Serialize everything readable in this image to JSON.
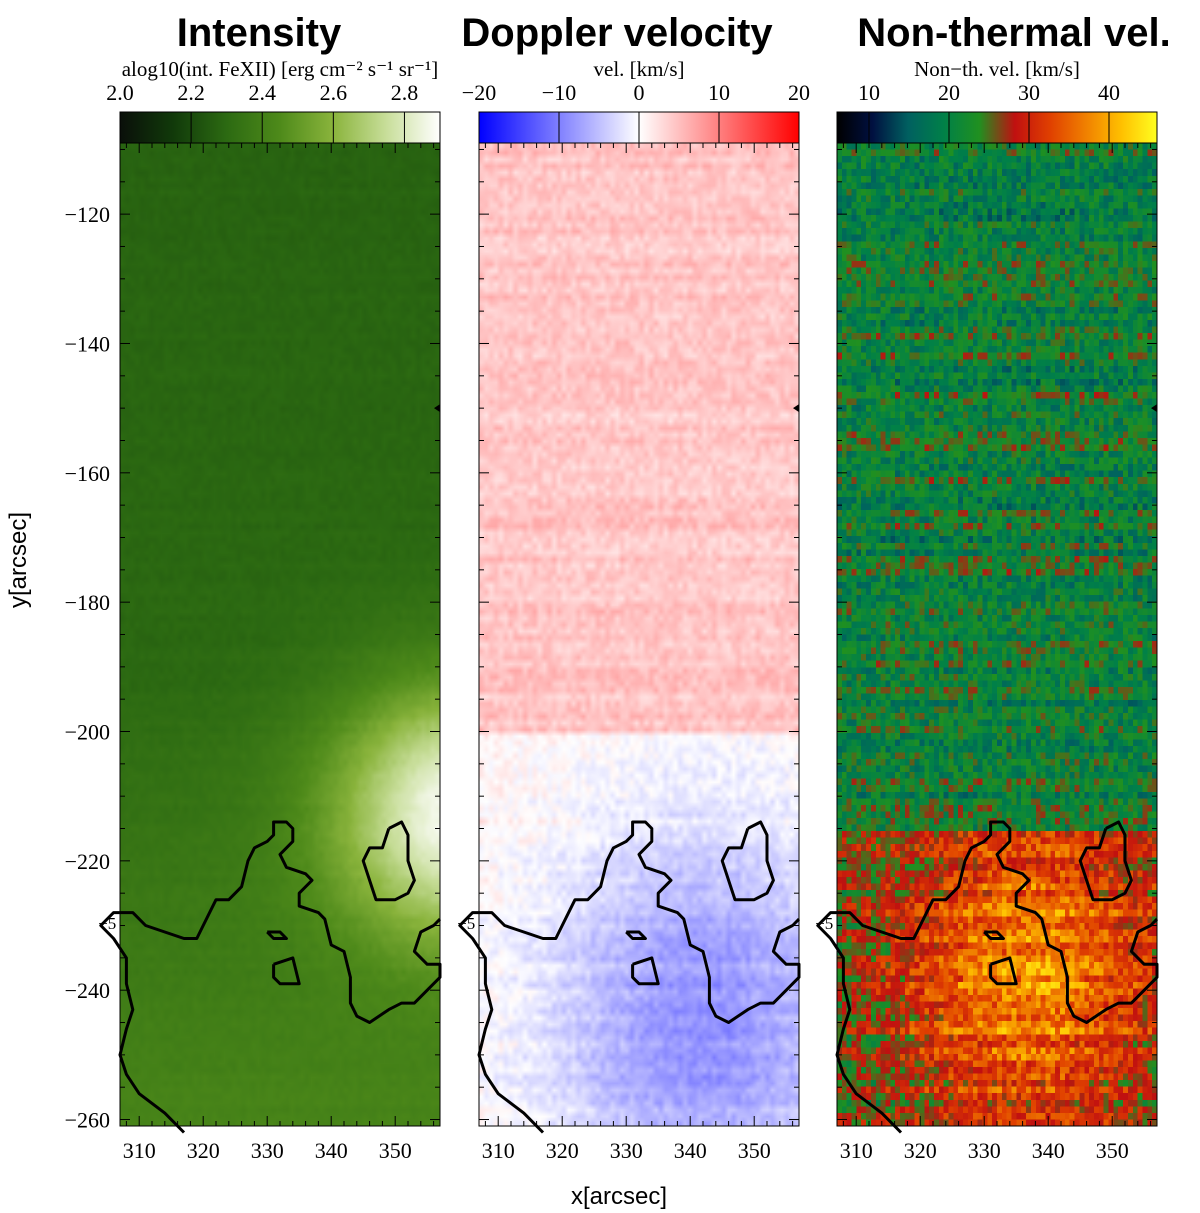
{
  "chart_data": {
    "type": "heatmap",
    "xlabel": "x[arcsec]",
    "ylabel": "y[arcsec]",
    "xlim": [
      307,
      357
    ],
    "ylim": [
      -261,
      -109
    ],
    "xticks": [
      310,
      320,
      330,
      340,
      350
    ],
    "yticks": [
      -120,
      -140,
      -160,
      -180,
      -200,
      -220,
      -240,
      -260
    ],
    "contour_label": "−5",
    "contours": [
      {
        "name": "main-region",
        "points": [
          [
            317,
            -262
          ],
          [
            314,
            -259
          ],
          [
            310,
            -256
          ],
          [
            308,
            -253
          ],
          [
            307,
            -250
          ],
          [
            308,
            -246
          ],
          [
            309,
            -243
          ],
          [
            308,
            -239
          ],
          [
            308,
            -235
          ],
          [
            306,
            -232
          ],
          [
            304,
            -230
          ],
          [
            306,
            -228
          ],
          [
            309,
            -228
          ],
          [
            311,
            -230
          ],
          [
            314,
            -231
          ],
          [
            317,
            -232
          ],
          [
            319,
            -232
          ],
          [
            320,
            -230
          ],
          [
            322,
            -226
          ],
          [
            324,
            -226
          ],
          [
            326,
            -224
          ],
          [
            327,
            -220
          ],
          [
            328,
            -218
          ],
          [
            330,
            -217
          ],
          [
            331,
            -216
          ],
          [
            331,
            -214
          ],
          [
            333,
            -214
          ],
          [
            334,
            -215
          ],
          [
            334,
            -217
          ],
          [
            332,
            -219
          ],
          [
            333,
            -221
          ],
          [
            336,
            -222
          ],
          [
            337,
            -223
          ],
          [
            335,
            -225
          ],
          [
            335,
            -227
          ],
          [
            338,
            -228
          ],
          [
            339,
            -229
          ],
          [
            340,
            -233
          ],
          [
            342,
            -234
          ],
          [
            343,
            -238
          ],
          [
            343,
            -240
          ],
          [
            343,
            -242
          ],
          [
            344,
            -244
          ],
          [
            346,
            -245
          ],
          [
            349,
            -243
          ],
          [
            351,
            -242
          ],
          [
            353,
            -242
          ],
          [
            355,
            -240
          ],
          [
            357,
            -238
          ],
          [
            357,
            -236
          ],
          [
            355,
            -236
          ],
          [
            353,
            -234
          ],
          [
            354,
            -231
          ],
          [
            356,
            -230
          ],
          [
            357,
            -229
          ]
        ]
      },
      {
        "name": "upper-right-loop",
        "points": [
          [
            349,
            -215
          ],
          [
            351,
            -214
          ],
          [
            352,
            -216
          ],
          [
            352,
            -218
          ],
          [
            352,
            -220
          ],
          [
            353,
            -223
          ],
          [
            352,
            -225
          ],
          [
            350,
            -226
          ],
          [
            347,
            -226
          ],
          [
            346,
            -223
          ],
          [
            345,
            -220
          ],
          [
            346,
            -218
          ],
          [
            348,
            -218
          ],
          [
            349,
            -215
          ]
        ]
      },
      {
        "name": "small-loop",
        "points": [
          [
            331,
            -236
          ],
          [
            334,
            -235
          ],
          [
            335,
            -239
          ],
          [
            332,
            -239
          ],
          [
            331,
            -238
          ],
          [
            331,
            -236
          ]
        ]
      },
      {
        "name": "tiny-blob",
        "points": [
          [
            330,
            -231
          ],
          [
            332,
            -231
          ],
          [
            333,
            -232
          ],
          [
            331,
            -232
          ],
          [
            330,
            -231
          ]
        ]
      }
    ],
    "panels": [
      {
        "title": "Intensity",
        "colorbar_label": "alog10(int. FeXII) [erg cm⁻² s⁻¹ sr⁻¹]",
        "colorbar_ticks": [
          "2.0",
          "2.2",
          "2.4",
          "2.6",
          "2.8"
        ],
        "colorbar_tick_values": [
          2.0,
          2.2,
          2.4,
          2.6,
          2.8
        ],
        "range": [
          2.0,
          2.9
        ],
        "colormap": [
          "#0a0f0a",
          "#113a0a",
          "#2c6a12",
          "#4e8a1a",
          "#8ab43c",
          "#c8de9a",
          "#ffffff"
        ]
      },
      {
        "title": "Doppler velocity",
        "colorbar_label": "vel. [km/s]",
        "colorbar_ticks": [
          "−20",
          "−10",
          "0",
          "10",
          "20"
        ],
        "colorbar_tick_values": [
          -20,
          -10,
          0,
          10,
          20
        ],
        "range": [
          -20,
          20
        ],
        "colormap": [
          "#0000ff",
          "#ffffff",
          "#ff0000"
        ]
      },
      {
        "title": "Non-thermal vel.",
        "colorbar_label": "Non−th. vel. [km/s]",
        "colorbar_ticks": [
          "10",
          "20",
          "30",
          "40"
        ],
        "colorbar_tick_values": [
          10,
          20,
          30,
          40
        ],
        "range": [
          6,
          46
        ],
        "colormap": [
          "#000000",
          "#001040",
          "#006060",
          "#008048",
          "#209020",
          "#c01010",
          "#e04000",
          "#f08000",
          "#ffc000",
          "#ffff20"
        ]
      }
    ]
  }
}
